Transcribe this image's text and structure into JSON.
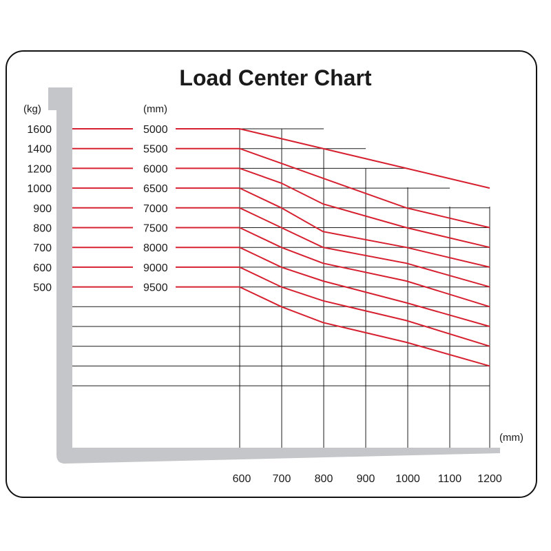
{
  "chart_data": {
    "type": "line",
    "title": "Load Center Chart",
    "y_unit": "(kg)",
    "series_unit": "(mm)",
    "x_unit": "(mm)",
    "x_ticks": [
      "600",
      "700",
      "800",
      "900",
      "1000",
      "1100",
      "1200"
    ],
    "colors": {
      "curve": "#d7202f",
      "grid": "#1a1a1a",
      "fork": "#c4c6c9"
    },
    "series": [
      {
        "capacity": "1600",
        "lift": "5000",
        "points": [
          [
            600,
            1600
          ],
          [
            1200,
            1000
          ]
        ]
      },
      {
        "capacity": "1400",
        "lift": "5500",
        "points": [
          [
            600,
            1400
          ],
          [
            700,
            1250
          ],
          [
            800,
            1100
          ],
          [
            1000,
            900
          ],
          [
            1200,
            800
          ]
        ]
      },
      {
        "capacity": "1200",
        "lift": "6000",
        "points": [
          [
            600,
            1200
          ],
          [
            700,
            1050
          ],
          [
            800,
            920
          ],
          [
            1000,
            800
          ],
          [
            1200,
            700
          ]
        ]
      },
      {
        "capacity": "1000",
        "lift": "6500",
        "points": [
          [
            600,
            1000
          ],
          [
            700,
            900
          ],
          [
            800,
            780
          ],
          [
            1000,
            700
          ],
          [
            1200,
            600
          ]
        ]
      },
      {
        "capacity": "900",
        "lift": "7000",
        "points": [
          [
            600,
            900
          ],
          [
            700,
            800
          ],
          [
            800,
            700
          ],
          [
            1000,
            620
          ],
          [
            1200,
            500
          ]
        ]
      },
      {
        "capacity": "800",
        "lift": "7500",
        "points": [
          [
            600,
            800
          ],
          [
            700,
            700
          ],
          [
            800,
            620
          ],
          [
            1000,
            530
          ],
          [
            1200,
            400
          ]
        ]
      },
      {
        "capacity": "700",
        "lift": "8000",
        "points": [
          [
            600,
            700
          ],
          [
            700,
            600
          ],
          [
            800,
            530
          ],
          [
            1000,
            420
          ],
          [
            1200,
            300
          ]
        ]
      },
      {
        "capacity": "600",
        "lift": "9000",
        "points": [
          [
            600,
            600
          ],
          [
            700,
            500
          ],
          [
            800,
            430
          ],
          [
            1000,
            330
          ],
          [
            1200,
            200
          ]
        ]
      },
      {
        "capacity": "500",
        "lift": "9500",
        "points": [
          [
            600,
            500
          ],
          [
            700,
            400
          ],
          [
            800,
            320
          ],
          [
            1000,
            220
          ],
          [
            1200,
            100
          ]
        ]
      }
    ]
  }
}
